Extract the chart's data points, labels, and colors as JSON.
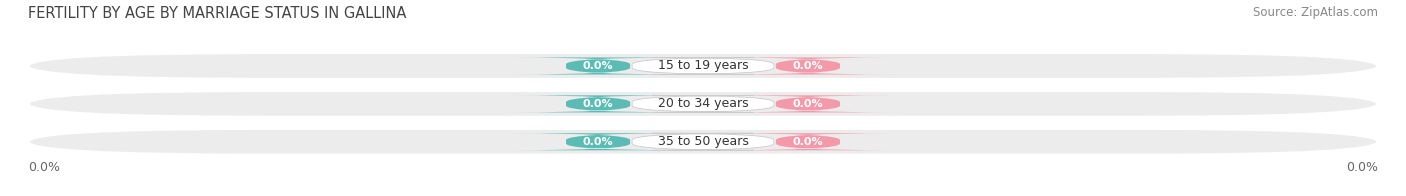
{
  "title": "FERTILITY BY AGE BY MARRIAGE STATUS IN GALLINA",
  "source": "Source: ZipAtlas.com",
  "categories": [
    "35 to 50 years",
    "20 to 34 years",
    "15 to 19 years"
  ],
  "married_values": [
    0.0,
    0.0,
    0.0
  ],
  "unmarried_values": [
    0.0,
    0.0,
    0.0
  ],
  "married_color": "#5bbcb5",
  "unmarried_color": "#f499aa",
  "bar_bg_color": "#ececec",
  "title_fontsize": 10.5,
  "source_fontsize": 8.5,
  "label_fontsize": 9,
  "value_fontsize": 8,
  "background_color": "#ffffff",
  "left_label": "0.0%",
  "right_label": "0.0%"
}
